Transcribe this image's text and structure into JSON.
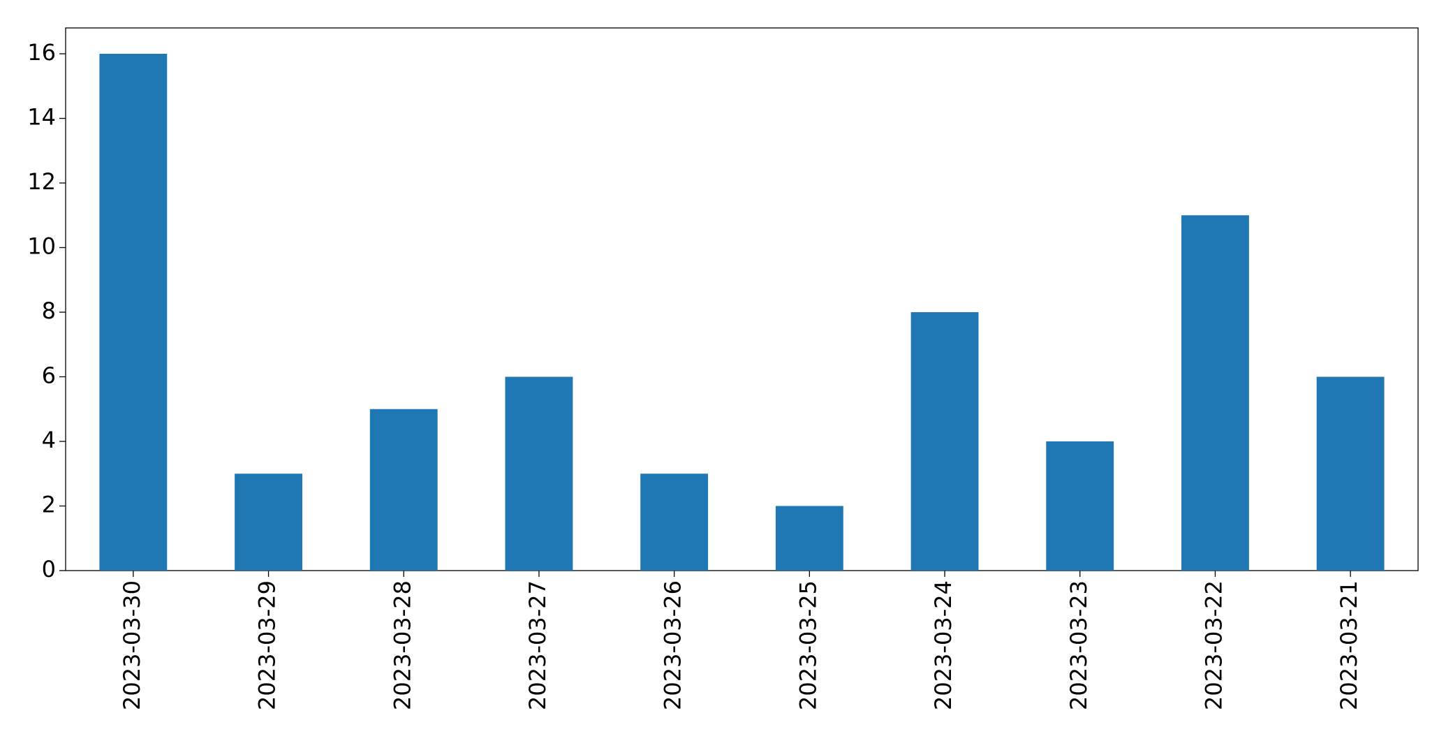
{
  "chart_data": {
    "type": "bar",
    "categories": [
      "2023-03-30",
      "2023-03-29",
      "2023-03-28",
      "2023-03-27",
      "2023-03-26",
      "2023-03-25",
      "2023-03-24",
      "2023-03-23",
      "2023-03-22",
      "2023-03-21"
    ],
    "values": [
      16,
      3,
      5,
      6,
      3,
      2,
      8,
      4,
      11,
      6
    ],
    "color": "#1f77b4",
    "ylim": [
      0,
      16.8
    ],
    "yticks": [
      0,
      2,
      4,
      6,
      8,
      10,
      12,
      14,
      16
    ],
    "grid": false
  }
}
